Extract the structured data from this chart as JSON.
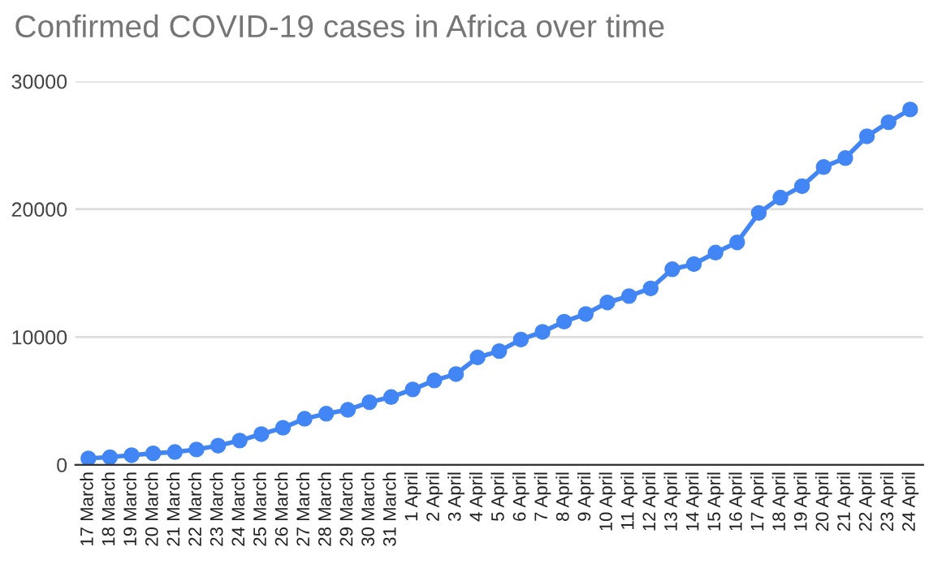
{
  "chart_data": {
    "type": "line",
    "title": "Confirmed COVID-19 cases in Africa over time",
    "categories": [
      "17 March",
      "18 March",
      "19 March",
      "20 March",
      "21 March",
      "22 March",
      "23 March",
      "24 March",
      "25 March",
      "26 March",
      "27 March",
      "28 March",
      "29 March",
      "30 March",
      "31 March",
      "1 April",
      "2 April",
      "3 April",
      "4 April",
      "5 April",
      "6 April",
      "7 April",
      "8 April",
      "9 April",
      "10 April",
      "11 April",
      "12 April",
      "13 April",
      "14 April",
      "15 April",
      "16 April",
      "17 April",
      "18 April",
      "19 April",
      "20 April",
      "21 April",
      "22 April",
      "23 April",
      "24 April"
    ],
    "series": [
      {
        "color": "#4285f4",
        "values": [
          500,
          600,
          750,
          900,
          1000,
          1200,
          1500,
          1900,
          2400,
          2900,
          3600,
          4000,
          4300,
          4900,
          5300,
          5900,
          6600,
          7100,
          8400,
          8900,
          9800,
          10400,
          11200,
          11800,
          12700,
          13200,
          13800,
          15300,
          15700,
          16600,
          17400,
          19700,
          20900,
          21800,
          23300,
          24000,
          25700,
          26800,
          27800
        ]
      }
    ],
    "ylim": [
      0,
      30000
    ],
    "yticks": [
      0,
      10000,
      20000,
      30000
    ],
    "grid": "y",
    "marker": "circle",
    "line_style": "solid",
    "legend": false
  }
}
